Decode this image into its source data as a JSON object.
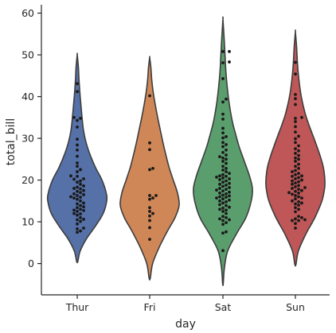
{
  "chart_data": {
    "type": "violin+swarm",
    "xlabel": "day",
    "ylabel": "total_bill",
    "categories": [
      "Thur",
      "Fri",
      "Sat",
      "Sun"
    ],
    "ylim": [
      -7.5,
      62
    ],
    "yticks": [
      0,
      10,
      20,
      30,
      40,
      50,
      60
    ],
    "grid": false,
    "colors": [
      "#5571a7",
      "#d08757",
      "#5b9e6e",
      "#bf5758"
    ],
    "violins": [
      {
        "category": "Thur",
        "range": [
          0.5,
          50
        ],
        "profile": [
          [
            0.5,
            0.02
          ],
          [
            3,
            0.1
          ],
          [
            6,
            0.32
          ],
          [
            9,
            0.62
          ],
          [
            12,
            0.88
          ],
          [
            15,
            1.0
          ],
          [
            17,
            0.98
          ],
          [
            20,
            0.84
          ],
          [
            23,
            0.62
          ],
          [
            26,
            0.44
          ],
          [
            29,
            0.3
          ],
          [
            32,
            0.21
          ],
          [
            36,
            0.15
          ],
          [
            40,
            0.1
          ],
          [
            44,
            0.06
          ],
          [
            47,
            0.04
          ],
          [
            50,
            0.0
          ]
        ]
      },
      {
        "category": "Fri",
        "range": [
          -3.5,
          49.3
        ],
        "profile": [
          [
            -3.5,
            0.02
          ],
          [
            0,
            0.1
          ],
          [
            4,
            0.33
          ],
          [
            8,
            0.62
          ],
          [
            11,
            0.86
          ],
          [
            14,
            1.0
          ],
          [
            17,
            0.94
          ],
          [
            20,
            0.8
          ],
          [
            23,
            0.66
          ],
          [
            26,
            0.55
          ],
          [
            29,
            0.45
          ],
          [
            32,
            0.36
          ],
          [
            35,
            0.27
          ],
          [
            38,
            0.19
          ],
          [
            41,
            0.12
          ],
          [
            44,
            0.07
          ],
          [
            47,
            0.04
          ],
          [
            49.3,
            0.0
          ]
        ]
      },
      {
        "category": "Sat",
        "range": [
          -4.8,
          58.5
        ],
        "profile": [
          [
            -4.8,
            0.01
          ],
          [
            -1,
            0.05
          ],
          [
            3,
            0.16
          ],
          [
            7,
            0.45
          ],
          [
            11,
            0.78
          ],
          [
            15,
            0.96
          ],
          [
            18,
            1.0
          ],
          [
            21,
            0.9
          ],
          [
            25,
            0.7
          ],
          [
            28,
            0.55
          ],
          [
            31,
            0.43
          ],
          [
            34,
            0.32
          ],
          [
            38,
            0.22
          ],
          [
            42,
            0.15
          ],
          [
            46,
            0.1
          ],
          [
            50,
            0.07
          ],
          [
            54,
            0.04
          ],
          [
            58.5,
            0.0
          ]
        ]
      },
      {
        "category": "Sun",
        "range": [
          -0.2,
          55.5
        ],
        "profile": [
          [
            -0.2,
            0.02
          ],
          [
            3,
            0.1
          ],
          [
            7,
            0.35
          ],
          [
            11,
            0.66
          ],
          [
            15,
            0.9
          ],
          [
            18,
            0.99
          ],
          [
            20,
            1.0
          ],
          [
            23,
            0.95
          ],
          [
            26,
            0.83
          ],
          [
            30,
            0.63
          ],
          [
            33,
            0.47
          ],
          [
            36,
            0.33
          ],
          [
            40,
            0.2
          ],
          [
            44,
            0.12
          ],
          [
            48,
            0.07
          ],
          [
            52,
            0.04
          ],
          [
            55.5,
            0.0
          ]
        ]
      }
    ],
    "points": {
      "Thur": [
        7.5,
        7.8,
        8.3,
        8.5,
        9.5,
        10.1,
        10.5,
        10.6,
        11.0,
        11.6,
        11.9,
        12.0,
        12.5,
        12.7,
        12.8,
        13.0,
        13.4,
        13.6,
        13.9,
        14.3,
        14.5,
        15.0,
        15.4,
        15.7,
        15.9,
        16.0,
        16.3,
        16.5,
        16.7,
        17.0,
        17.3,
        17.5,
        17.9,
        18.0,
        18.3,
        18.6,
        19.0,
        19.5,
        19.8,
        20.2,
        20.3,
        20.9,
        21.0,
        22.0,
        22.5,
        23.3,
        24.1,
        25.7,
        27.2,
        28.4,
        29.8,
        32.7,
        34.3,
        34.8,
        35.0,
        41.2,
        43.1
      ],
      "Fri": [
        5.8,
        8.6,
        10.3,
        11.4,
        12.0,
        12.5,
        13.4,
        15.4,
        15.7,
        16.3,
        16.3,
        22.5,
        22.8,
        27.3,
        28.9,
        40.2
      ],
      "Sat": [
        3.1,
        7.3,
        7.6,
        9.4,
        9.8,
        10.3,
        10.5,
        10.7,
        11.0,
        11.3,
        12.0,
        12.5,
        12.8,
        13.0,
        13.3,
        13.5,
        13.9,
        14.1,
        14.5,
        14.8,
        15.0,
        15.2,
        15.5,
        15.7,
        15.9,
        16.0,
        16.2,
        16.4,
        16.7,
        16.9,
        17.1,
        17.4,
        17.6,
        17.8,
        18.0,
        18.2,
        18.5,
        18.8,
        19.0,
        19.2,
        19.5,
        19.8,
        20.1,
        20.3,
        20.5,
        20.7,
        20.9,
        21.0,
        21.3,
        21.6,
        22.0,
        22.4,
        22.8,
        23.3,
        24.0,
        24.5,
        25.0,
        25.3,
        25.6,
        26.0,
        26.6,
        27.2,
        28.0,
        28.5,
        29.0,
        30.1,
        30.4,
        31.3,
        32.4,
        34.6,
        35.8,
        38.7,
        39.4,
        44.3,
        48.1,
        48.3,
        50.8,
        50.8
      ],
      "Sun": [
        8.5,
        9.6,
        10.3,
        10.3,
        10.5,
        10.7,
        11.0,
        11.3,
        12.4,
        13.0,
        13.4,
        14.0,
        14.3,
        14.5,
        14.8,
        15.0,
        15.5,
        15.7,
        16.0,
        16.3,
        16.6,
        16.9,
        17.0,
        17.3,
        17.5,
        17.8,
        18.0,
        18.2,
        18.4,
        18.7,
        19.0,
        19.3,
        19.6,
        19.8,
        20.0,
        20.3,
        20.6,
        20.9,
        21.0,
        21.3,
        21.6,
        22.0,
        22.3,
        22.8,
        23.3,
        23.8,
        24.5,
        25.0,
        25.3,
        25.9,
        26.4,
        27.0,
        27.5,
        28.2,
        29.0,
        29.9,
        30.5,
        31.5,
        32.8,
        34.0,
        34.8,
        35.0,
        38.1,
        39.5,
        40.5,
        45.4,
        48.2
      ]
    }
  }
}
